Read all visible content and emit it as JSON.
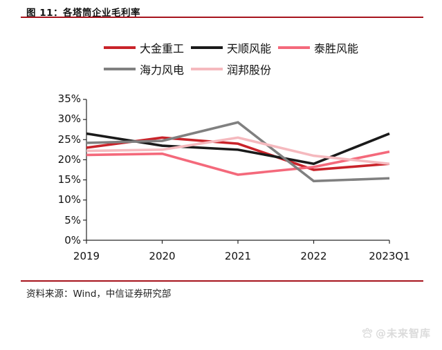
{
  "page": {
    "title": "图 11：各塔筒企业毛利率",
    "source": "资料来源：Wind，中信证券研究部",
    "watermark": "@未来智库",
    "accent_color": "#a6121b"
  },
  "chart_data": {
    "type": "line",
    "title": "各塔筒企业毛利率",
    "categories": [
      "2019",
      "2020",
      "2021",
      "2022",
      "2023Q1"
    ],
    "series": [
      {
        "name": "大金重工",
        "color": "#c9232a",
        "values": [
          23.0,
          25.5,
          24.0,
          17.5,
          19.0
        ]
      },
      {
        "name": "天顺风能",
        "color": "#1a1a1a",
        "values": [
          26.5,
          23.5,
          22.5,
          19.0,
          26.5
        ]
      },
      {
        "name": "泰胜风能",
        "color": "#f4697b",
        "values": [
          21.2,
          21.5,
          16.3,
          18.2,
          22.0
        ]
      },
      {
        "name": "海力风电",
        "color": "#808080",
        "values": [
          24.2,
          24.7,
          29.3,
          14.7,
          15.4
        ]
      },
      {
        "name": "润邦股份",
        "color": "#f5b9be",
        "values": [
          22.2,
          22.5,
          25.5,
          21.0,
          19.0
        ]
      }
    ],
    "ylim": [
      0,
      35
    ],
    "ytick_step": 5,
    "yticks": [
      "35%",
      "30%",
      "25%",
      "20%",
      "15%",
      "10%",
      "5%",
      "0%"
    ],
    "ylabel": "",
    "xlabel": "",
    "grid": false,
    "legend_position": "top",
    "unit": "percent"
  }
}
